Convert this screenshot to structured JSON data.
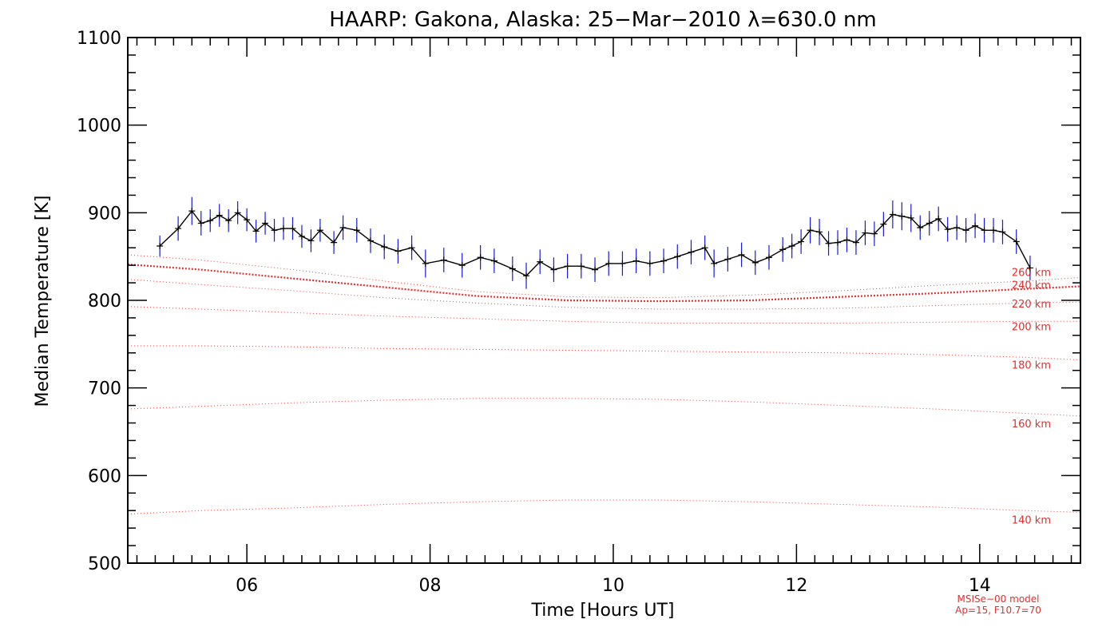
{
  "chart_data": {
    "type": "line",
    "title": "HAARP: Gakona,  Alaska: 25−Mar−2010 λ=630.0 nm",
    "xlabel": "Time [Hours UT]",
    "ylabel": "Median Temperature [K]",
    "xlim": [
      4.7,
      15.1
    ],
    "ylim": [
      500,
      1100
    ],
    "x_ticks": [
      6,
      8,
      10,
      12,
      14
    ],
    "x_tick_labels": [
      "06",
      "08",
      "10",
      "12",
      "14"
    ],
    "y_ticks": [
      500,
      600,
      700,
      800,
      900,
      1000,
      1100
    ],
    "y_tick_labels": [
      "500",
      "600",
      "700",
      "800",
      "900",
      "1000",
      "1100"
    ],
    "grid": false,
    "measured": {
      "line_color": "#000000",
      "error_color": "#1a1adc",
      "x": [
        5.05,
        5.25,
        5.4,
        5.5,
        5.6,
        5.7,
        5.8,
        5.9,
        6.0,
        6.1,
        6.2,
        6.3,
        6.4,
        6.5,
        6.6,
        6.7,
        6.8,
        6.95,
        7.05,
        7.2,
        7.35,
        7.5,
        7.65,
        7.8,
        7.95,
        8.15,
        8.35,
        8.55,
        8.7,
        8.9,
        9.05,
        9.2,
        9.35,
        9.5,
        9.65,
        9.8,
        9.95,
        10.1,
        10.25,
        10.4,
        10.55,
        10.7,
        10.85,
        11.0,
        11.1,
        11.25,
        11.4,
        11.55,
        11.7,
        11.85,
        11.95,
        12.05,
        12.15,
        12.25,
        12.35,
        12.45,
        12.55,
        12.65,
        12.75,
        12.85,
        12.95,
        13.05,
        13.15,
        13.25,
        13.35,
        13.45,
        13.55,
        13.65,
        13.75,
        13.85,
        13.95,
        14.05,
        14.15,
        14.25,
        14.4,
        14.55
      ],
      "y": [
        862,
        882,
        902,
        888,
        891,
        897,
        891,
        900,
        892,
        879,
        888,
        880,
        882,
        882,
        873,
        868,
        880,
        866,
        883,
        880,
        868,
        861,
        856,
        860,
        842,
        846,
        840,
        849,
        845,
        836,
        828,
        844,
        835,
        839,
        839,
        835,
        842,
        842,
        845,
        842,
        845,
        850,
        855,
        860,
        842,
        847,
        852,
        843,
        849,
        858,
        862,
        867,
        880,
        878,
        865,
        866,
        869,
        866,
        877,
        876,
        887,
        898,
        896,
        894,
        883,
        888,
        893,
        881,
        883,
        880,
        885,
        880,
        880,
        878,
        867,
        837
      ],
      "error": [
        12,
        14,
        16,
        14,
        13,
        13,
        13,
        13,
        13,
        13,
        13,
        13,
        13,
        13,
        13,
        13,
        13,
        13,
        14,
        14,
        14,
        14,
        14,
        14,
        16,
        14,
        14,
        14,
        14,
        14,
        15,
        14,
        14,
        14,
        14,
        14,
        14,
        14,
        14,
        14,
        14,
        14,
        14,
        14,
        16,
        14,
        14,
        14,
        14,
        14,
        14,
        14,
        15,
        15,
        14,
        14,
        14,
        14,
        14,
        14,
        14,
        16,
        16,
        16,
        14,
        14,
        14,
        14,
        14,
        14,
        14,
        14,
        14,
        14,
        14,
        14
      ]
    },
    "model_curves": {
      "color": "#e03030",
      "x": [
        4.7,
        5.5,
        6.5,
        7.5,
        8.5,
        9.5,
        10.5,
        11.5,
        12.5,
        13.5,
        14.5,
        15.1
      ],
      "series": [
        {
          "name": "140 km",
          "values": [
            556,
            560,
            563,
            567,
            570,
            572,
            572,
            570,
            567,
            564,
            560,
            558
          ]
        },
        {
          "name": "160 km",
          "values": [
            676,
            679,
            683,
            686,
            688,
            688,
            687,
            684,
            680,
            676,
            671,
            668
          ]
        },
        {
          "name": "180 km",
          "values": [
            748,
            748,
            747,
            745,
            744,
            743,
            742,
            741,
            740,
            738,
            735,
            732
          ]
        },
        {
          "name": "200 km",
          "values": [
            793,
            790,
            786,
            782,
            779,
            776,
            774,
            774,
            774,
            775,
            776,
            776
          ]
        },
        {
          "name": "220 km",
          "values": [
            824,
            818,
            811,
            803,
            797,
            792,
            790,
            790,
            791,
            794,
            797,
            798
          ]
        },
        {
          "name": "240 km",
          "values": [
            841,
            835,
            825,
            815,
            805,
            800,
            799,
            800,
            804,
            808,
            813,
            816
          ]
        },
        {
          "name": "260 km",
          "values": [
            852,
            846,
            835,
            822,
            810,
            804,
            803,
            806,
            811,
            817,
            822,
            826
          ]
        }
      ]
    },
    "model_note": [
      "MSISe−00 model",
      "Ap=15, F10.7=70"
    ]
  }
}
